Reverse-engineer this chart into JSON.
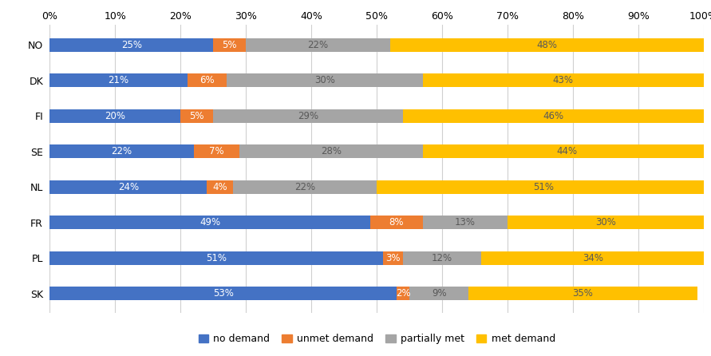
{
  "countries": [
    "NO",
    "DK",
    "FI",
    "SE",
    "NL",
    "FR",
    "PL",
    "SK"
  ],
  "no_demand": [
    25,
    21,
    20,
    22,
    24,
    49,
    51,
    53
  ],
  "unmet_demand": [
    5,
    6,
    5,
    7,
    4,
    8,
    3,
    2
  ],
  "partially_met": [
    22,
    30,
    29,
    28,
    22,
    13,
    12,
    9
  ],
  "met_demand": [
    48,
    43,
    46,
    44,
    51,
    30,
    34,
    35
  ],
  "colors": {
    "no_demand": "#4472C4",
    "unmet_demand": "#ED7D31",
    "partially_met": "#A5A5A5",
    "met_demand": "#FFC000"
  },
  "text_colors": {
    "no_demand": "#FFFFFF",
    "unmet_demand": "#FFFFFF",
    "partially_met": "#595959",
    "met_demand": "#595959"
  },
  "legend_labels": [
    "no demand",
    "unmet demand",
    "partially met",
    "met demand"
  ],
  "background_color": "#FFFFFF",
  "bar_height": 0.38,
  "xlim": [
    0,
    100
  ],
  "xticks": [
    0,
    10,
    20,
    30,
    40,
    50,
    60,
    70,
    80,
    90,
    100
  ],
  "xtick_labels": [
    "0%",
    "10%",
    "20%",
    "30%",
    "40%",
    "50%",
    "60%",
    "70%",
    "80%",
    "90%",
    "100%"
  ],
  "label_fontsize": 8.5,
  "tick_fontsize": 9,
  "legend_fontsize": 9,
  "figsize": [
    8.91,
    4.46
  ],
  "dpi": 100
}
